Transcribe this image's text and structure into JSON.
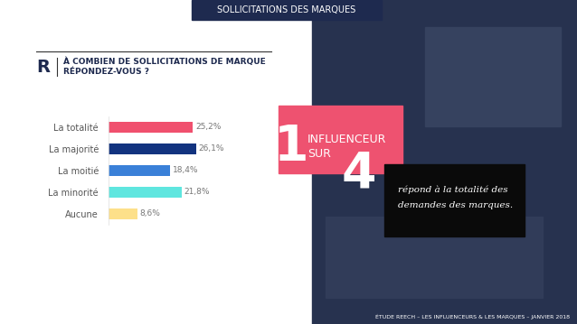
{
  "header": "SOLLICITATIONS DES MARQUES",
  "logo": "R",
  "question": [
    "À COMBIEN DE SOLLICITATIONS DE MARQUE",
    "RÉPONDEZ-VOUS ?"
  ],
  "chart_data": {
    "type": "bar",
    "orientation": "horizontal",
    "categories": [
      "La totalité",
      "La majorité",
      "La moitié",
      "La minorité",
      "Aucune"
    ],
    "values": [
      25.2,
      26.1,
      18.4,
      21.8,
      8.6
    ],
    "value_labels": [
      "25,2%",
      "26,1%",
      "18,4%",
      "21,8%",
      "8,6%"
    ],
    "colors": [
      "#f0506e",
      "#12337f",
      "#3a80d8",
      "#5fe6df",
      "#fde08a"
    ],
    "xlim": [
      0,
      30
    ],
    "data_labels": true,
    "tick_labels": "y",
    "grid": false
  },
  "highlight": {
    "top": "1",
    "label": [
      "INFLUENCEUR",
      "SUR"
    ],
    "bottom": "4",
    "caption": [
      "répond à la totalité des",
      "demandes des marques."
    ]
  },
  "footer": "ÉTUDE REECH – LES INFLUENCEURS & LES MARQUES – JANVIER 2018"
}
